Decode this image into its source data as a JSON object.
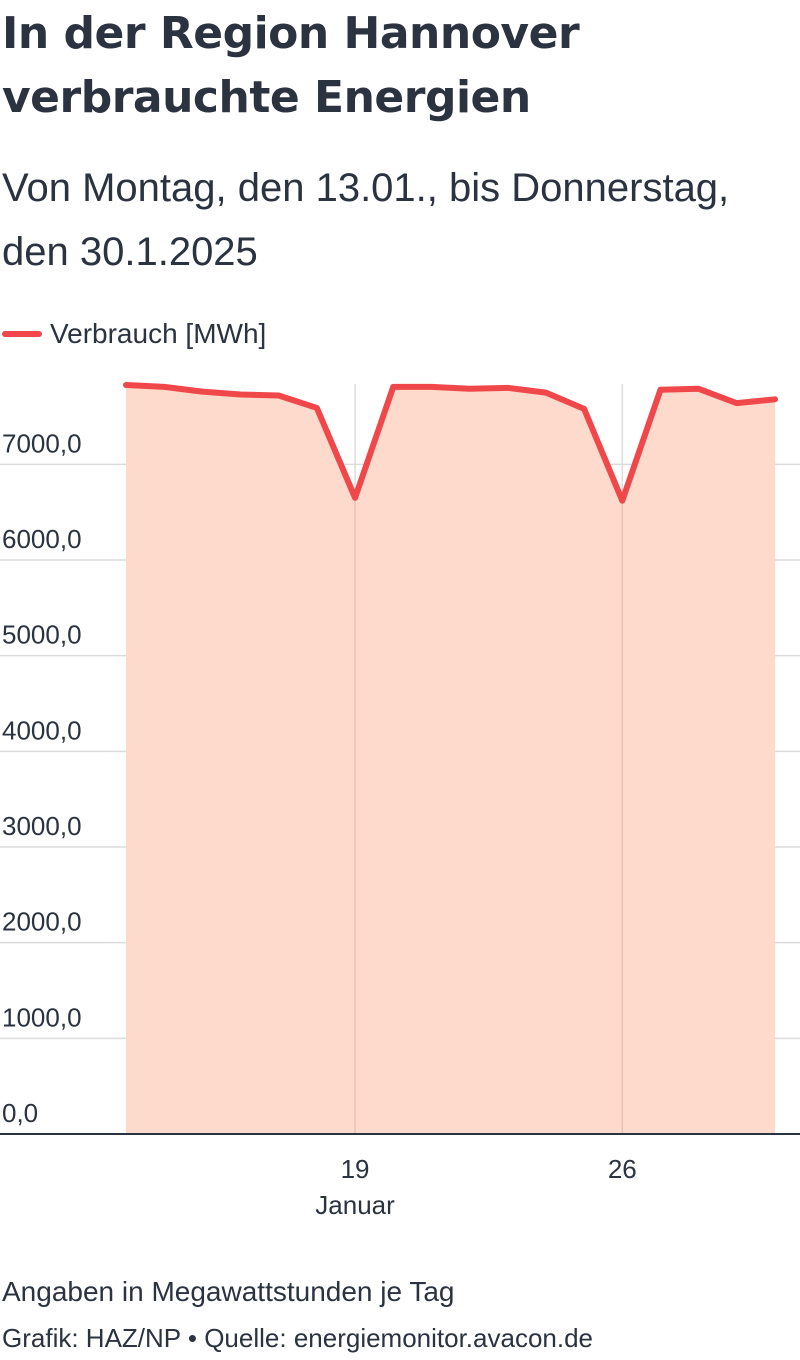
{
  "header": {
    "title": "In der Region Hannover verbrauchte Energien",
    "subtitle": "Von Montag, den 13.01., bis Donnerstag, den 30.1.2025"
  },
  "footer": {
    "note": "Angaben in Megawattstunden je Tag",
    "source": "Grafik: HAZ/NP • Quelle: energiemonitor.avacon.de"
  },
  "colors": {
    "line": "#f0474a",
    "area": "#fddacb",
    "grid": "#dcdcdc",
    "text": "#2b3340"
  },
  "chart_data": {
    "type": "area",
    "title": "In der Region Hannover verbrauchte Energien",
    "subtitle": "Von Montag, den 13.01., bis Donnerstag, den 30.1.2025",
    "x": [
      "2025-01-13",
      "2025-01-14",
      "2025-01-15",
      "2025-01-16",
      "2025-01-17",
      "2025-01-18",
      "2025-01-19",
      "2025-01-20",
      "2025-01-21",
      "2025-01-22",
      "2025-01-23",
      "2025-01-24",
      "2025-01-25",
      "2025-01-26",
      "2025-01-27",
      "2025-01-28",
      "2025-01-29",
      "2025-01-30"
    ],
    "series": [
      {
        "name": "Verbrauch [MWh]",
        "values": [
          7830,
          7810,
          7760,
          7730,
          7720,
          7590,
          6650,
          7810,
          7810,
          7790,
          7800,
          7750,
          7580,
          6620,
          7780,
          7790,
          7640,
          7680
        ]
      }
    ],
    "xlabel": "",
    "ylabel": "",
    "ylim": [
      0,
      7840
    ],
    "y_ticks": [
      {
        "value": 0,
        "label": "0,0"
      },
      {
        "value": 1000,
        "label": "1000,0"
      },
      {
        "value": 2000,
        "label": "2000,0"
      },
      {
        "value": 3000,
        "label": "3000,0"
      },
      {
        "value": 4000,
        "label": "4000,0"
      },
      {
        "value": 5000,
        "label": "5000,0"
      },
      {
        "value": 6000,
        "label": "6000,0"
      },
      {
        "value": 7000,
        "label": "7000,0"
      }
    ],
    "x_ticks": [
      {
        "date": "2025-01-19",
        "label": "19",
        "sublabel": "Januar"
      },
      {
        "date": "2025-01-26",
        "label": "26",
        "sublabel": ""
      }
    ],
    "grid": true,
    "legend": "top-left"
  }
}
